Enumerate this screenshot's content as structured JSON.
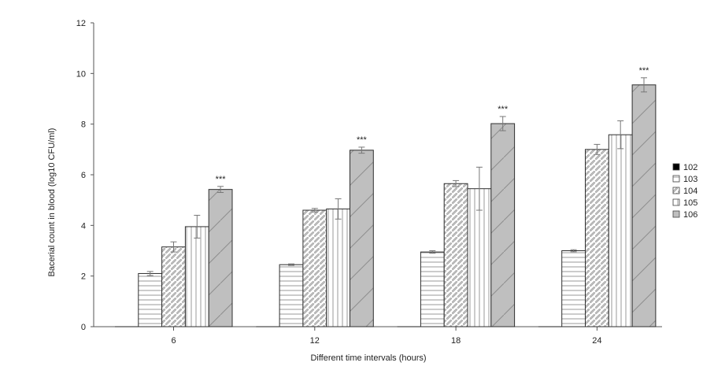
{
  "chart_data": {
    "type": "bar",
    "title": "",
    "xlabel": "Different time intervals (hours)",
    "ylabel": "Bacerial count in blood (log10 CFU/ml)",
    "categories": [
      "6",
      "12",
      "18",
      "24"
    ],
    "ylim": [
      0,
      12
    ],
    "yticks": [
      "0",
      "2",
      "4",
      "6",
      "8",
      "10",
      "12"
    ],
    "grid": false,
    "legend_position": "right",
    "series": [
      {
        "name": "102",
        "values": [
          0,
          0,
          0,
          0
        ],
        "errors": [
          0,
          0,
          0,
          0
        ],
        "fill": "#000000",
        "pattern": "solid",
        "significance": [
          "",
          "",
          "",
          ""
        ]
      },
      {
        "name": "103",
        "values": [
          2.1,
          2.45,
          2.95,
          3.0
        ],
        "errors": [
          0.08,
          0.03,
          0.05,
          0.04
        ],
        "fill": "#ffffff",
        "pattern": "horizontal",
        "significance": [
          "",
          "",
          "",
          ""
        ]
      },
      {
        "name": "104",
        "values": [
          3.15,
          4.6,
          5.65,
          7.0
        ],
        "errors": [
          0.2,
          0.07,
          0.12,
          0.2
        ],
        "fill": "#ffffff",
        "pattern": "diagonal",
        "significance": [
          "",
          "",
          "",
          ""
        ]
      },
      {
        "name": "105",
        "values": [
          3.95,
          4.65,
          5.45,
          7.58
        ],
        "errors": [
          0.45,
          0.4,
          0.85,
          0.55
        ],
        "fill": "#ffffff",
        "pattern": "vertical",
        "significance": [
          "",
          "",
          "",
          ""
        ]
      },
      {
        "name": "106",
        "values": [
          5.42,
          6.97,
          8.02,
          9.55
        ],
        "errors": [
          0.12,
          0.12,
          0.28,
          0.28
        ],
        "fill": "#bfbfbf",
        "pattern": "wide-diagonal",
        "significance": [
          "***",
          "***",
          "***",
          "***"
        ]
      }
    ]
  }
}
